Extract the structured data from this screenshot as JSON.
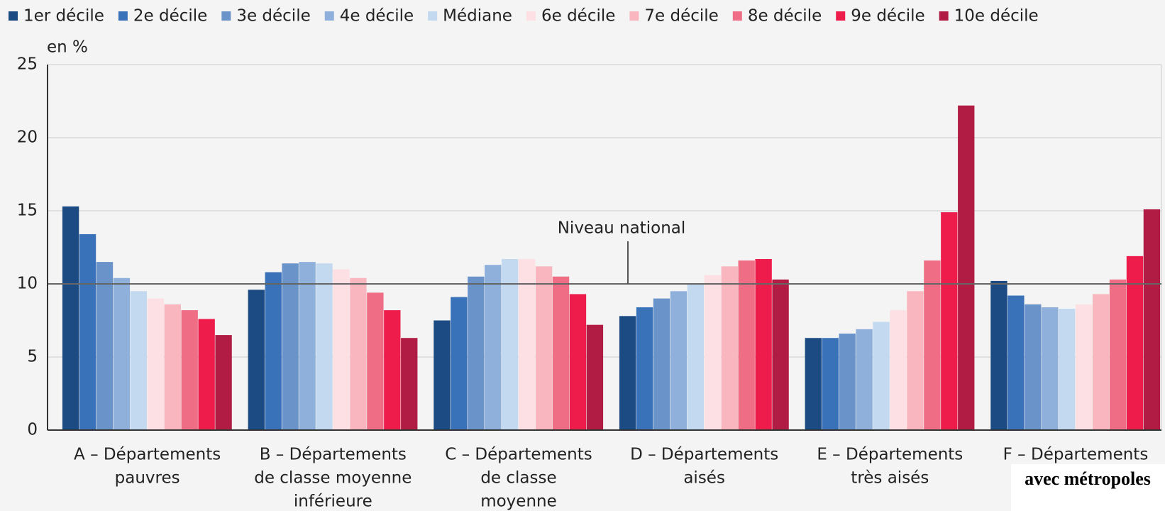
{
  "chart_data": {
    "type": "grouped_bar",
    "y_label": "en %",
    "categories": [
      [
        "A – Départements",
        "pauvres"
      ],
      [
        "B – Départements",
        "de classe moyenne",
        "inférieure"
      ],
      [
        "C – Départements",
        "de classe",
        "moyenne"
      ],
      [
        "D – Départements",
        "aisés"
      ],
      [
        "E – Départements",
        "très aisés"
      ],
      [
        "F – Départements",
        "avec métropoles"
      ]
    ],
    "series": [
      {
        "name": "1er décile",
        "color": "#1b4b82",
        "values": [
          15.3,
          9.6,
          7.5,
          7.8,
          6.3,
          10.2
        ]
      },
      {
        "name": "2e décile",
        "color": "#3a72b9",
        "values": [
          13.4,
          10.8,
          9.1,
          8.4,
          6.3,
          9.2
        ]
      },
      {
        "name": "3e décile",
        "color": "#6a93c9",
        "values": [
          11.5,
          11.4,
          10.5,
          9.0,
          6.6,
          8.6
        ]
      },
      {
        "name": "4e décile",
        "color": "#8fb0da",
        "values": [
          10.4,
          11.5,
          11.3,
          9.5,
          6.9,
          8.4
        ]
      },
      {
        "name": "Médiane",
        "color": "#c3d9f0",
        "values": [
          9.5,
          11.4,
          11.7,
          10.0,
          7.4,
          8.3
        ]
      },
      {
        "name": "6e décile",
        "color": "#fde0e4",
        "values": [
          9.0,
          11.0,
          11.7,
          10.6,
          8.2,
          8.6
        ]
      },
      {
        "name": "7e décile",
        "color": "#f9b6bf",
        "values": [
          8.6,
          10.4,
          11.2,
          11.2,
          9.5,
          9.3
        ]
      },
      {
        "name": "8e décile",
        "color": "#ef6e85",
        "values": [
          8.2,
          9.4,
          10.5,
          11.6,
          11.6,
          10.3
        ]
      },
      {
        "name": "9e décile",
        "color": "#ee1c4b",
        "values": [
          7.6,
          8.2,
          9.3,
          11.7,
          14.9,
          11.9
        ]
      },
      {
        "name": "10e décile",
        "color": "#b01c43",
        "values": [
          6.5,
          6.3,
          7.2,
          10.3,
          22.2,
          15.1
        ]
      }
    ],
    "reference_line": {
      "label": "Niveau national",
      "value": 10
    },
    "ylim": [
      0,
      25
    ],
    "yticks": [
      0,
      5,
      10,
      15,
      20,
      25
    ],
    "grid": true
  }
}
